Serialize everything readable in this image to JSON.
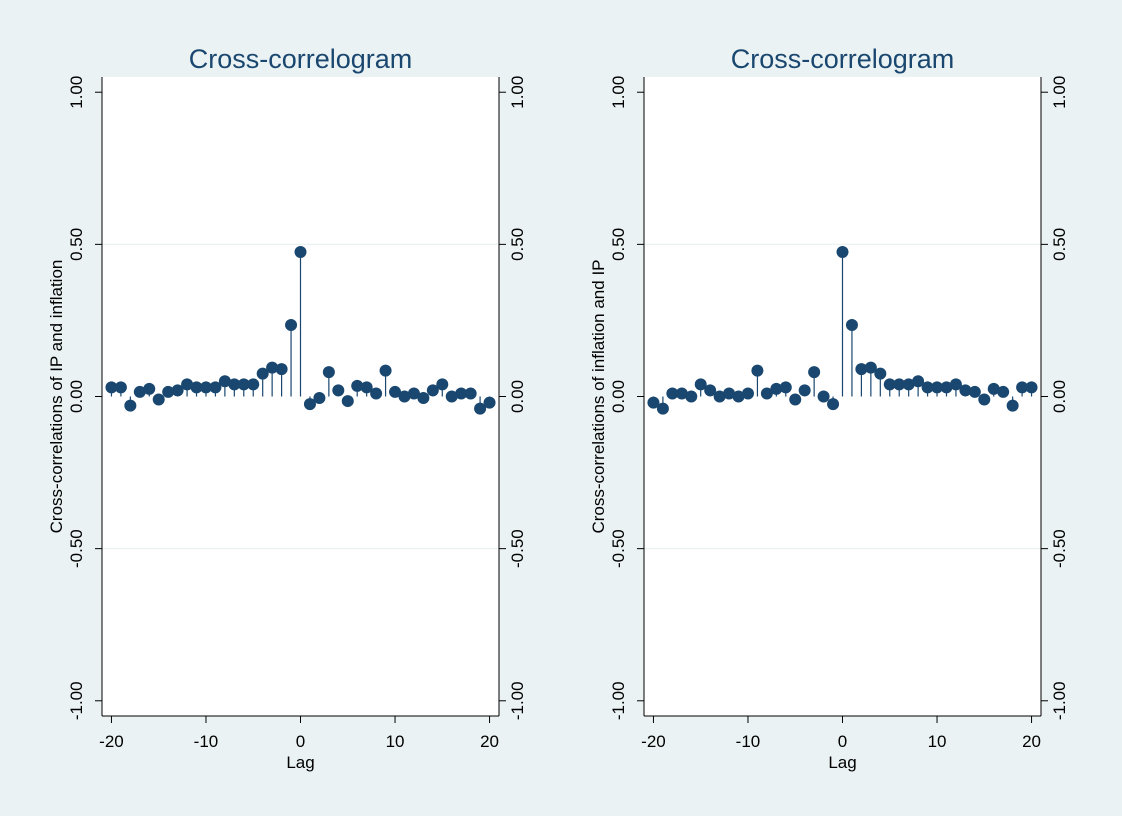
{
  "chart_data": [
    {
      "type": "scatter",
      "style": "stem",
      "title": "Cross-correlogram",
      "xlabel": "Lag",
      "ylabel": "Cross-correlations of IP and inflation",
      "xlim": [
        -21,
        21
      ],
      "ylim": [
        -1.05,
        1.05
      ],
      "xticks": [
        "-20",
        "-10",
        "0",
        "10",
        "20"
      ],
      "xtick_values": [
        -20,
        -10,
        0,
        10,
        20
      ],
      "yticks": [
        "-1.00",
        "-0.50",
        "0.00",
        "0.50",
        "1.00"
      ],
      "ytick_values": [
        -1,
        -0.5,
        0,
        0.5,
        1
      ],
      "gridlines": [
        -0.5,
        0.5
      ],
      "mirror_right_axis": true,
      "color": "#1a476f",
      "x": [
        -20,
        -19,
        -18,
        -17,
        -16,
        -15,
        -14,
        -13,
        -12,
        -11,
        -10,
        -9,
        -8,
        -7,
        -6,
        -5,
        -4,
        -3,
        -2,
        -1,
        0,
        1,
        2,
        3,
        4,
        5,
        6,
        7,
        8,
        9,
        10,
        11,
        12,
        13,
        14,
        15,
        16,
        17,
        18,
        19,
        20
      ],
      "values": [
        0.03,
        0.03,
        -0.03,
        0.015,
        0.025,
        -0.01,
        0.015,
        0.02,
        0.04,
        0.03,
        0.03,
        0.03,
        0.05,
        0.04,
        0.04,
        0.04,
        0.075,
        0.095,
        0.09,
        0.235,
        0.475,
        -0.025,
        -0.005,
        0.08,
        0.02,
        -0.015,
        0.035,
        0.03,
        0.01,
        0.085,
        0.015,
        0.0,
        0.01,
        -0.005,
        0.02,
        0.04,
        0.0,
        0.01,
        0.01,
        -0.04,
        -0.02
      ]
    },
    {
      "type": "scatter",
      "style": "stem",
      "title": "Cross-correlogram",
      "xlabel": "Lag",
      "ylabel": "Cross-correlations of inflation and IP",
      "xlim": [
        -21,
        21
      ],
      "ylim": [
        -1.05,
        1.05
      ],
      "xticks": [
        "-20",
        "-10",
        "0",
        "10",
        "20"
      ],
      "xtick_values": [
        -20,
        -10,
        0,
        10,
        20
      ],
      "yticks": [
        "-1.00",
        "-0.50",
        "0.00",
        "0.50",
        "1.00"
      ],
      "ytick_values": [
        -1,
        -0.5,
        0,
        0.5,
        1
      ],
      "gridlines": [
        -0.5,
        0.5
      ],
      "mirror_right_axis": true,
      "color": "#1a476f",
      "x": [
        -20,
        -19,
        -18,
        -17,
        -16,
        -15,
        -14,
        -13,
        -12,
        -11,
        -10,
        -9,
        -8,
        -7,
        -6,
        -5,
        -4,
        -3,
        -2,
        -1,
        0,
        1,
        2,
        3,
        4,
        5,
        6,
        7,
        8,
        9,
        10,
        11,
        12,
        13,
        14,
        15,
        16,
        17,
        18,
        19,
        20
      ],
      "values": [
        -0.02,
        -0.04,
        0.01,
        0.01,
        0.0,
        0.04,
        0.02,
        0.0,
        0.01,
        0.0,
        0.01,
        0.085,
        0.01,
        0.025,
        0.03,
        -0.01,
        0.02,
        0.08,
        0.0,
        -0.025,
        0.475,
        0.235,
        0.09,
        0.095,
        0.075,
        0.04,
        0.04,
        0.04,
        0.05,
        0.03,
        0.03,
        0.03,
        0.04,
        0.02,
        0.015,
        -0.01,
        0.025,
        0.015,
        -0.03,
        0.03,
        0.03
      ]
    }
  ]
}
